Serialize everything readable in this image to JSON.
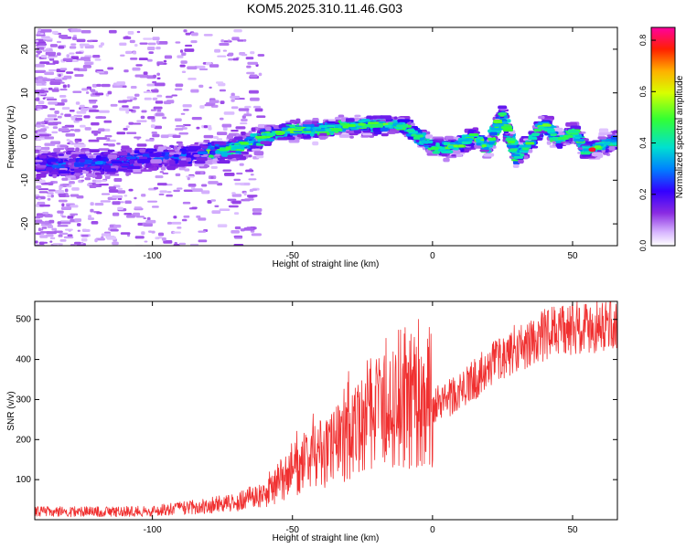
{
  "title": "KOM5.2025.310.11.46.G03",
  "chart_data": [
    {
      "type": "heatmap",
      "title": "KOM5.2025.310.11.46.G03",
      "xlabel": "Height of straight line (km)",
      "ylabel": "Frequency (Hz)",
      "xlim": [
        -142,
        66
      ],
      "ylim": [
        -25,
        25
      ],
      "xticks": [
        -100,
        -50,
        0,
        50
      ],
      "yticks": [
        -20,
        -10,
        0,
        10,
        20
      ],
      "colorbar": {
        "label": "Normalized spectral amplitude",
        "range": [
          0,
          0.85
        ],
        "ticks": [
          "0.0",
          "0.2",
          "0.4",
          "0.6",
          "0.8"
        ]
      },
      "ridge": {
        "description": "frequency of strongest spectral amplitude vs height",
        "x": [
          -140,
          -130,
          -120,
          -110,
          -100,
          -90,
          -80,
          -70,
          -65,
          -60,
          -50,
          -40,
          -30,
          -20,
          -10,
          -5,
          0,
          5,
          10,
          15,
          20,
          25,
          30,
          35,
          40,
          45,
          50,
          55,
          60,
          66
        ],
        "y": [
          -6.5,
          -6.5,
          -6,
          -5.5,
          -5,
          -4.5,
          -3.5,
          -2.5,
          -1.5,
          0,
          1.5,
          1.5,
          2.5,
          2.5,
          2.5,
          0,
          -2.5,
          -2.5,
          -2,
          0,
          -2.5,
          5,
          -5,
          -1,
          3,
          -1,
          1,
          -3,
          -2,
          -1
        ],
        "peak": {
          "x": 57,
          "y": -3,
          "amplitude": 0.8
        }
      }
    },
    {
      "type": "line",
      "xlabel": "Height of straight line (km)",
      "ylabel": "SNR (v/v)",
      "xlim": [
        -142,
        66
      ],
      "ylim": [
        0,
        545
      ],
      "xticks": [
        -100,
        -50,
        0,
        50
      ],
      "yticks": [
        100,
        200,
        300,
        400,
        500
      ],
      "series_color": "#f03030",
      "trend": {
        "x": [
          -142,
          -120,
          -100,
          -90,
          -80,
          -70,
          -60,
          -50,
          -40,
          -30,
          -20,
          -10,
          0,
          10,
          20,
          30,
          40,
          50,
          60,
          66
        ],
        "y": [
          20,
          20,
          22,
          28,
          35,
          45,
          65,
          120,
          160,
          200,
          260,
          280,
          280,
          320,
          380,
          430,
          460,
          480,
          485,
          490
        ]
      },
      "spikes": [
        {
          "x": -5,
          "y": 500
        },
        {
          "x": -30,
          "y": 370
        },
        {
          "x": -20,
          "y": 400
        },
        {
          "x": 0,
          "y": 150
        }
      ]
    }
  ]
}
